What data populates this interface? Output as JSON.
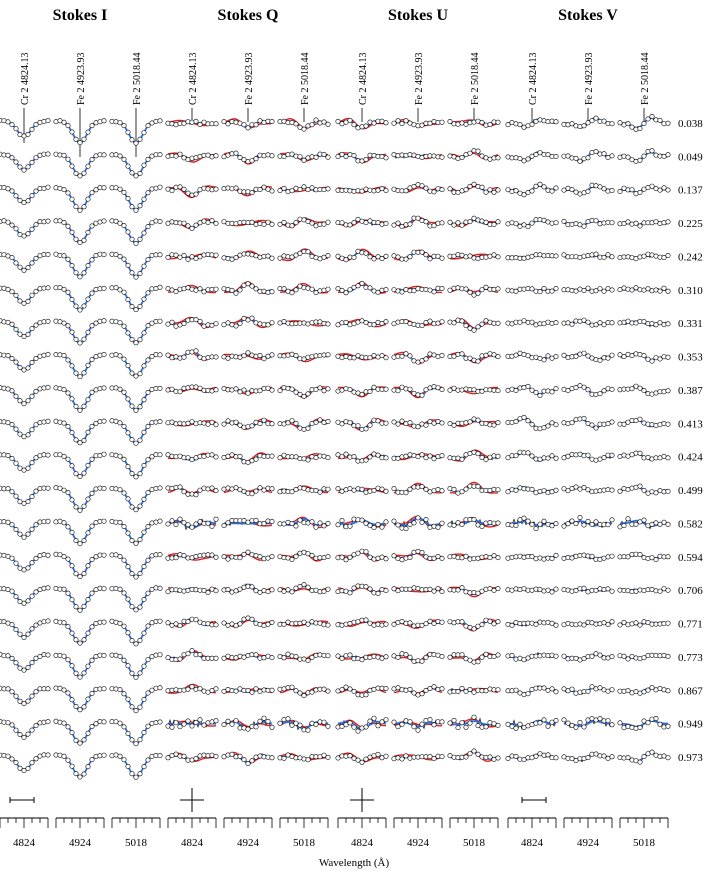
{
  "panels": [
    {
      "title": "Stokes I"
    },
    {
      "title": "Stokes Q"
    },
    {
      "title": "Stokes U"
    },
    {
      "title": "Stokes V"
    }
  ],
  "lines": [
    "Cr 2 4824.13",
    "Fe 2 4923.93",
    "Fe 2 5018.44"
  ],
  "ticks": [
    4824,
    4924,
    5018
  ],
  "phases": [
    0.038,
    0.049,
    0.137,
    0.225,
    0.242,
    {
      "value": 0.31,
      "label": "0.310"
    },
    0.331,
    0.353,
    0.387,
    0.413,
    0.424,
    0.499,
    0.582,
    0.594,
    0.706,
    0.771,
    0.773,
    0.867,
    0.949,
    0.973
  ],
  "xlabel": "Wavelength (Å)"
}
